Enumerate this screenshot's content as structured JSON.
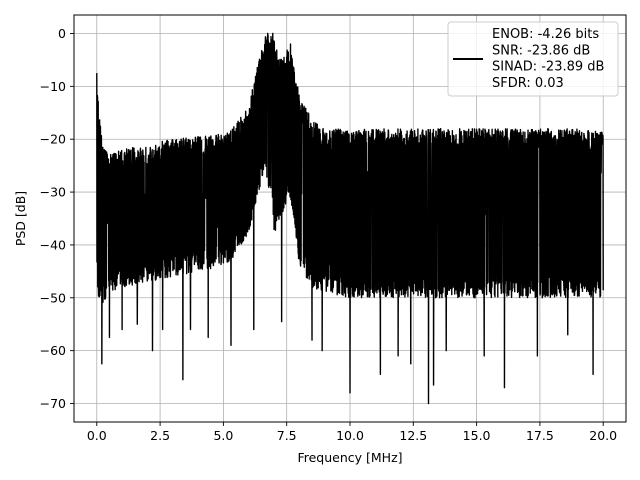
{
  "chart_data": {
    "type": "line",
    "xlabel": "Frequency [MHz]",
    "ylabel": "PSD [dB]",
    "xlim": [
      -0.9,
      20.9
    ],
    "ylim": [
      -73.5,
      3.5
    ],
    "xticks": [
      0.0,
      2.5,
      5.0,
      7.5,
      10.0,
      12.5,
      15.0,
      17.5,
      20.0
    ],
    "xtick_labels": [
      "0.0",
      "2.5",
      "5.0",
      "7.5",
      "10.0",
      "12.5",
      "15.0",
      "17.5",
      "20.0"
    ],
    "yticks": [
      0,
      -10,
      -20,
      -30,
      -40,
      -50,
      -60,
      -70
    ],
    "ytick_labels": [
      "0",
      "−10",
      "−20",
      "−30",
      "−40",
      "−50",
      "−60",
      "−70"
    ],
    "grid": true,
    "legend_position": "upper right",
    "line_color": "#000000",
    "series": [
      {
        "legend_lines": [
          "ENOB: -4.26 bits",
          "SNR: -23.86 dB",
          "SINAD: -23.89 dB",
          "SFDR: 0.03"
        ],
        "envelope": {
          "x": [
            0.0,
            0.05,
            0.2,
            0.5,
            1.0,
            2.0,
            3.0,
            4.0,
            5.0,
            5.5,
            6.0,
            6.3,
            6.5,
            6.7,
            6.9,
            7.0,
            7.2,
            7.4,
            7.6,
            7.8,
            8.0,
            8.5,
            9.0,
            10.0,
            12.0,
            14.0,
            16.0,
            18.0,
            20.0
          ],
          "upper": [
            -8,
            -12,
            -20,
            -23,
            -22,
            -21,
            -20,
            -19.5,
            -19,
            -17,
            -14,
            -7,
            -3,
            0,
            0,
            -1,
            -5,
            -4,
            -2.5,
            -6,
            -12,
            -16,
            -18,
            -18,
            -18,
            -18,
            -18,
            -18,
            -18
          ],
          "lower": [
            -44,
            -50,
            -52,
            -50,
            -48,
            -47,
            -46,
            -45,
            -44,
            -42,
            -38,
            -32,
            -28,
            -27,
            -32,
            -38,
            -36,
            -34,
            -30,
            -36,
            -44,
            -48,
            -49,
            -50,
            -50,
            -50,
            -50,
            -50,
            -50
          ]
        },
        "deep_spikes": [
          [
            0.2,
            -62.5
          ],
          [
            0.5,
            -57.5
          ],
          [
            1.0,
            -56
          ],
          [
            1.6,
            -55
          ],
          [
            2.2,
            -60
          ],
          [
            2.6,
            -56
          ],
          [
            3.4,
            -65.5
          ],
          [
            3.7,
            -56
          ],
          [
            4.4,
            -57.5
          ],
          [
            5.3,
            -59
          ],
          [
            6.2,
            -56
          ],
          [
            7.3,
            -54.5
          ],
          [
            8.5,
            -58
          ],
          [
            8.9,
            -60
          ],
          [
            10.0,
            -68
          ],
          [
            11.2,
            -64.5
          ],
          [
            11.9,
            -61
          ],
          [
            12.4,
            -62.5
          ],
          [
            13.1,
            -70
          ],
          [
            13.3,
            -66.5
          ],
          [
            13.8,
            -60
          ],
          [
            15.3,
            -61
          ],
          [
            16.1,
            -67
          ],
          [
            17.4,
            -61
          ],
          [
            18.6,
            -57
          ],
          [
            19.6,
            -64.5
          ]
        ],
        "tall_spikes": [
          [
            0.0,
            -7.5
          ],
          [
            6.75,
            0.0
          ],
          [
            6.95,
            0.0
          ],
          [
            7.65,
            -2.0
          ]
        ]
      }
    ]
  }
}
